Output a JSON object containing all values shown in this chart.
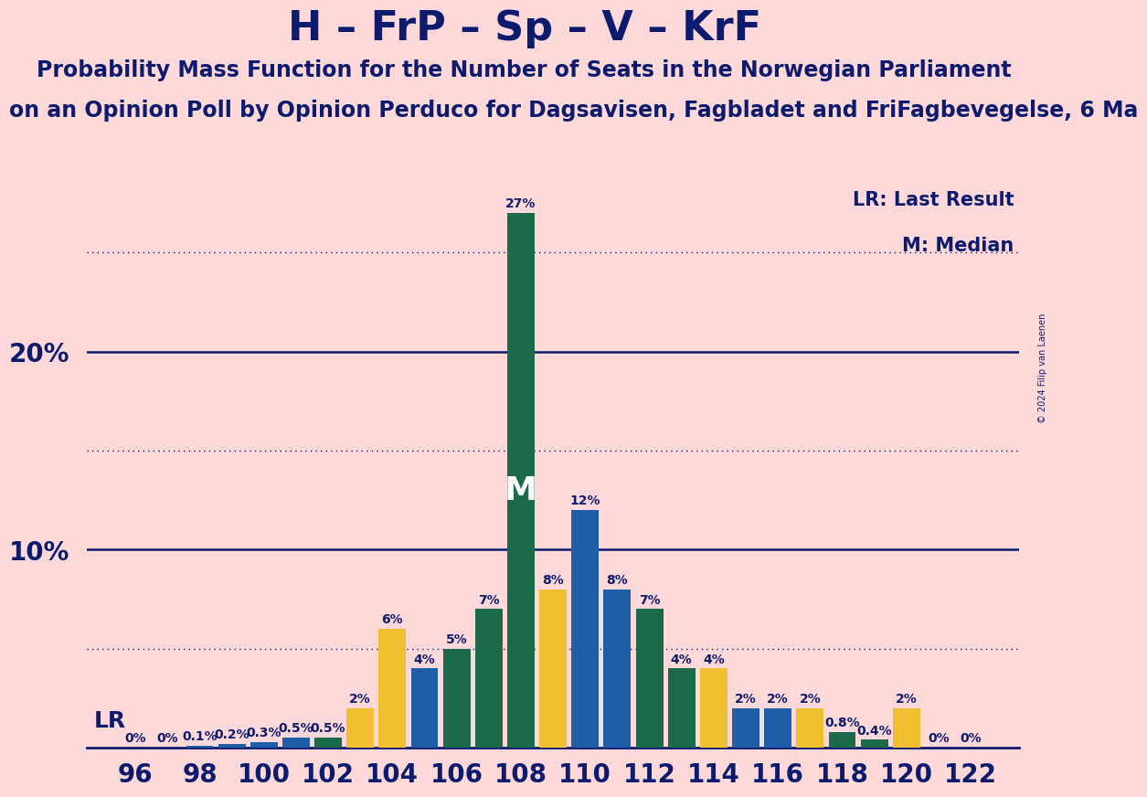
{
  "title": "H – FrP – Sp – V – KrF",
  "subtitle1": "Probability Mass Function for the Number of Seats in the Norwegian Parliament",
  "subtitle2": "on an Opinion Poll by Opinion Perduco for Dagsavisen, Fagbladet and FriFagbevegelse, 6 Ma",
  "copyright": "© 2024 Filip van Laenen",
  "legend1": "LR: Last Result",
  "legend2": "M: Median",
  "lr_label": "LR",
  "median_label": "M",
  "background_color": "#FFD9D9",
  "bar_color_yellow": "#F0C030",
  "bar_color_blue": "#1E5FA8",
  "bar_color_green": "#1B6B4A",
  "axis_color": "#0D1B6E",
  "title_color": "#0D1B6E",
  "seats": [
    96,
    97,
    98,
    99,
    100,
    101,
    102,
    103,
    104,
    105,
    106,
    107,
    108,
    109,
    110,
    111,
    112,
    113,
    114,
    115,
    116,
    117,
    118,
    119,
    120,
    121,
    122
  ],
  "values": [
    0.0,
    0.0,
    0.1,
    0.2,
    0.3,
    0.5,
    0.5,
    2.0,
    6.0,
    4.0,
    5.0,
    7.0,
    27.0,
    8.0,
    12.0,
    8.0,
    7.0,
    4.0,
    4.0,
    2.0,
    2.0,
    2.0,
    0.8,
    0.4,
    2.0,
    0.0,
    0.0
  ],
  "bar_colors": [
    "#F0C030",
    "#1E5FA8",
    "#1E5FA8",
    "#1E5FA8",
    "#1E5FA8",
    "#1E5FA8",
    "#1B6B4A",
    "#F0C030",
    "#F0C030",
    "#1E5FA8",
    "#1B6B4A",
    "#1B6B4A",
    "#1B6B4A",
    "#F0C030",
    "#1E5FA8",
    "#1E5FA8",
    "#1B6B4A",
    "#1B6B4A",
    "#F0C030",
    "#1E5FA8",
    "#1E5FA8",
    "#F0C030",
    "#1B6B4A",
    "#1B6B4A",
    "#F0C030",
    "#1E5FA8",
    "#F0C030"
  ],
  "lr_seat": 108,
  "median_seat": 108,
  "ylim": [
    0,
    29
  ],
  "solid_yticks": [
    10,
    20
  ],
  "dotted_yticks": [
    5,
    15,
    25
  ],
  "title_fontsize": 32,
  "subtitle_fontsize": 17,
  "bar_label_fontsize": 10,
  "tick_fontsize": 20
}
